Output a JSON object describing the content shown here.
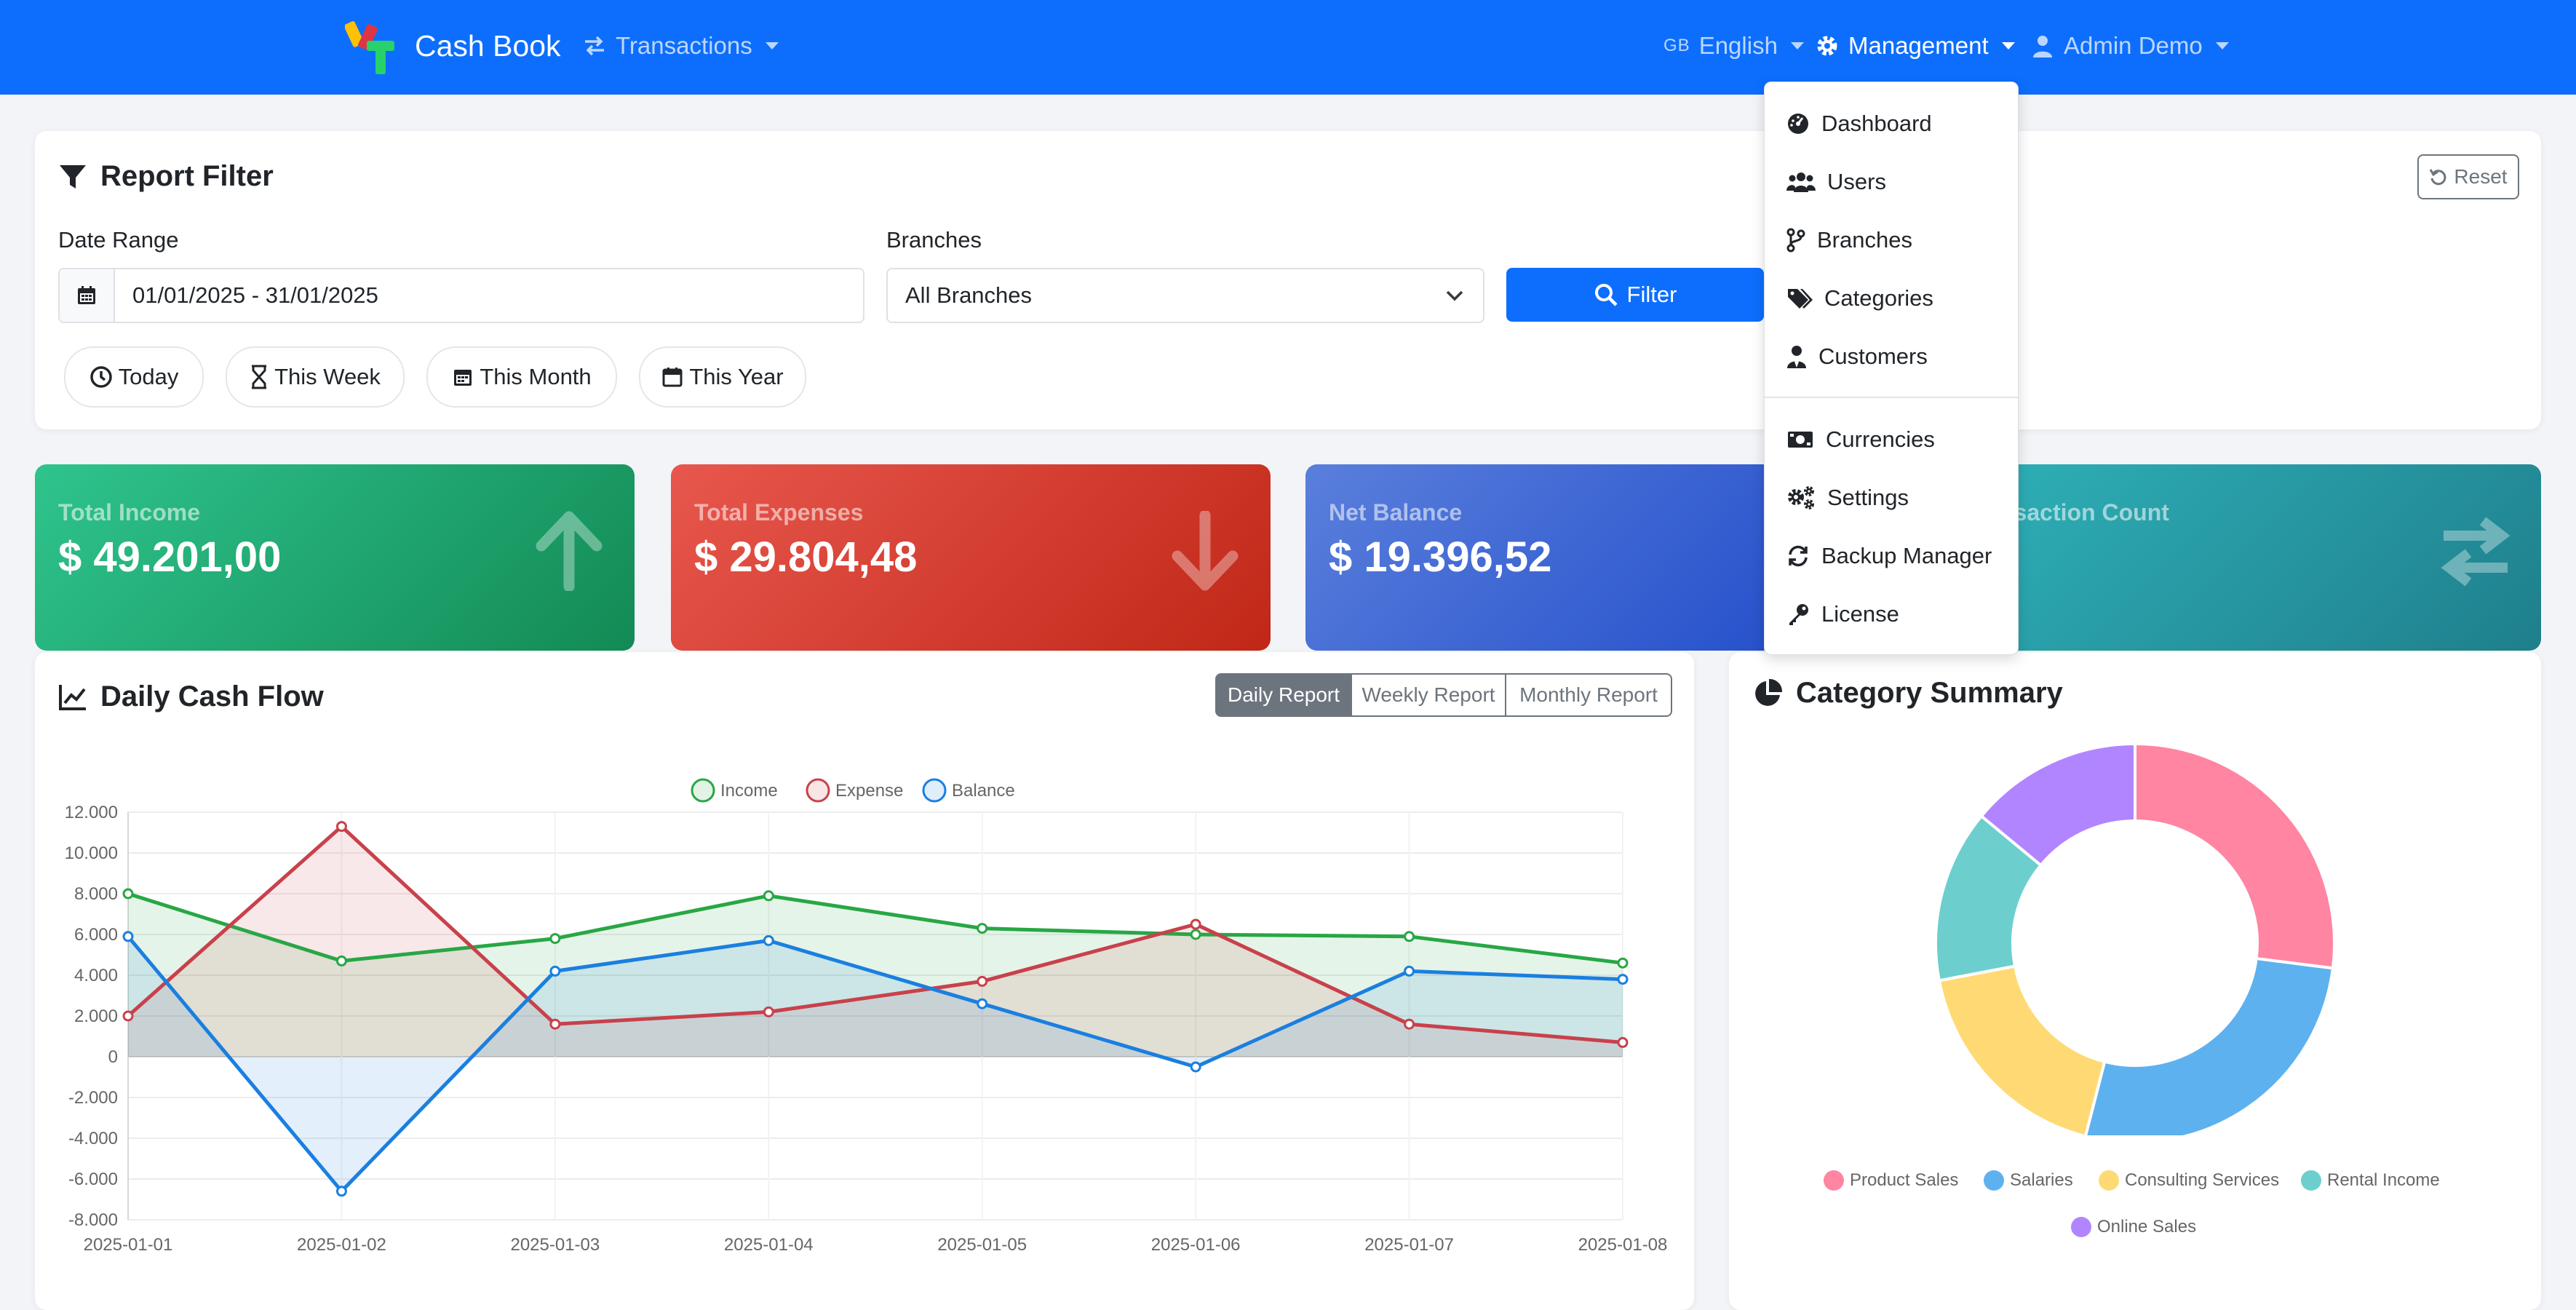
{
  "navbar": {
    "brand": "Cash Book",
    "transactions": "Transactions",
    "language_code": "GB",
    "language": "English",
    "management": "Management",
    "user": "Admin Demo"
  },
  "management_menu": {
    "items": [
      "Dashboard",
      "Users",
      "Branches",
      "Categories",
      "Customers",
      "Currencies",
      "Settings",
      "Backup Manager",
      "License"
    ]
  },
  "report_filter": {
    "title": "Report Filter",
    "reset_label": "Reset",
    "date_range_label": "Date Range",
    "date_range_value": "01/01/2025 - 31/01/2025",
    "branches_label": "Branches",
    "branches_value": "All Branches",
    "filter_label": "Filter",
    "quick": [
      "Today",
      "This Week",
      "This Month",
      "This Year"
    ]
  },
  "stats": [
    {
      "label": "Total Income",
      "value": "$ 49.201,00",
      "color_from": "#2fc48d",
      "color_to": "#138a55"
    },
    {
      "label": "Total Expenses",
      "value": "$ 29.804,48",
      "color_from": "#e8574d",
      "color_to": "#c02717"
    },
    {
      "label": "Net Balance",
      "value": "$ 19.396,52",
      "color_from": "#5a7fdc",
      "color_to": "#1c48c8"
    },
    {
      "label": "Transaction Count",
      "value": "",
      "color_from": "#2fb2b9",
      "color_to": "#1f7f8c"
    }
  ],
  "cash_flow": {
    "title": "Daily Cash Flow",
    "tabs": [
      "Daily Report",
      "Weekly Report",
      "Monthly Report"
    ],
    "active_tab": 0
  },
  "category_summary": {
    "title": "Category Summary"
  },
  "chart_data": [
    {
      "type": "line",
      "x": [
        "2025-01-01",
        "2025-01-02",
        "2025-01-03",
        "2025-01-04",
        "2025-01-05",
        "2025-01-06",
        "2025-01-07",
        "2025-01-08"
      ],
      "series": [
        {
          "name": "Income",
          "color": "#28a745",
          "values": [
            8000,
            4700,
            5800,
            7900,
            6300,
            6000,
            5900,
            4600
          ]
        },
        {
          "name": "Expense",
          "color": "#c8414b",
          "values": [
            2000,
            11300,
            1600,
            2200,
            3700,
            6500,
            1600,
            700
          ]
        },
        {
          "name": "Balance",
          "color": "#1a7fe0",
          "values": [
            5900,
            -6600,
            4200,
            5700,
            2600,
            -500,
            4200,
            3800
          ]
        }
      ],
      "ylim": [
        -8000,
        12000
      ],
      "yticks": [
        "12.000",
        "10.000",
        "8.000",
        "6.000",
        "4.000",
        "2.000",
        "0",
        "-2.000",
        "-4.000",
        "-6.000",
        "-8.000"
      ],
      "grid": true,
      "legend": "top"
    },
    {
      "type": "pie",
      "donut": true,
      "categories": [
        "Product Sales",
        "Salaries",
        "Consulting Services",
        "Rental Income",
        "Online Sales"
      ],
      "values": [
        27,
        27,
        18,
        14,
        14
      ],
      "colors": [
        "#ff85a2",
        "#5eb1ef",
        "#ffda74",
        "#6ccfcd",
        "#b185ff"
      ],
      "legend": "bottom"
    }
  ]
}
